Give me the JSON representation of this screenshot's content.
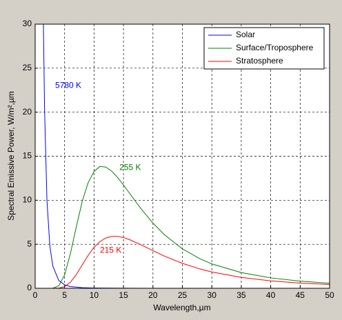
{
  "chart_data": {
    "type": "line",
    "xlabel": "Wavelength,µm",
    "ylabel": "Spectral Emissive Power, W/m²,µm",
    "xlim": [
      0,
      50
    ],
    "ylim": [
      0,
      30
    ],
    "xticks": [
      0,
      5,
      10,
      15,
      20,
      25,
      30,
      35,
      40,
      45,
      50
    ],
    "yticks": [
      0,
      5,
      10,
      15,
      20,
      25,
      30
    ],
    "grid": true,
    "legend": "upper right",
    "series": [
      {
        "name": "Solar",
        "color": "#0000ff",
        "x": [
          1.4,
          1.6,
          2,
          2.5,
          3,
          4,
          5,
          6,
          8,
          10,
          15,
          20,
          30,
          40,
          50
        ],
        "values": [
          30,
          20.2,
          10,
          4.76,
          2.52,
          0.9,
          0.39,
          0.2,
          0.066,
          0.028,
          0.006,
          0.002,
          0.0004,
          0.0001,
          5e-05
        ]
      },
      {
        "name": "Surface/Troposphere",
        "color": "#008000",
        "x": [
          0,
          2,
          3,
          4,
          5,
          6,
          7,
          8,
          9,
          10,
          11,
          12,
          13,
          14,
          15,
          16,
          18,
          20,
          22,
          25,
          28,
          30,
          35,
          40,
          45,
          50
        ],
        "values": [
          0,
          0,
          0.01,
          0.275,
          1.51,
          3.98,
          7.02,
          9.89,
          12.0,
          13.27,
          13.84,
          13.77,
          13.31,
          12.58,
          11.73,
          10.82,
          9.01,
          7.4,
          6.05,
          4.48,
          3.34,
          2.77,
          1.78,
          1.18,
          0.81,
          0.57
        ]
      },
      {
        "name": "Stratosphere",
        "color": "#ff0000",
        "x": [
          0,
          3,
          4,
          5,
          6,
          7,
          8,
          9,
          10,
          11,
          12,
          13,
          14,
          15,
          16,
          18,
          20,
          22,
          25,
          28,
          30,
          35,
          40,
          45,
          50
        ],
        "values": [
          0,
          0,
          0.02,
          0.184,
          0.69,
          1.57,
          2.66,
          3.74,
          4.65,
          5.3,
          5.71,
          5.89,
          5.89,
          5.76,
          5.53,
          4.93,
          4.27,
          3.64,
          2.83,
          2.19,
          1.85,
          1.23,
          0.84,
          0.59,
          0.43
        ]
      }
    ],
    "annotations": [
      {
        "text": "5780 K",
        "x": 3.4,
        "y": 23,
        "color": "#0000ff"
      },
      {
        "text": "255 K",
        "x": 14.3,
        "y": 13.7,
        "color": "#008000"
      },
      {
        "text": "215 K",
        "x": 11,
        "y": 4.3,
        "color": "#ff0000"
      }
    ]
  }
}
